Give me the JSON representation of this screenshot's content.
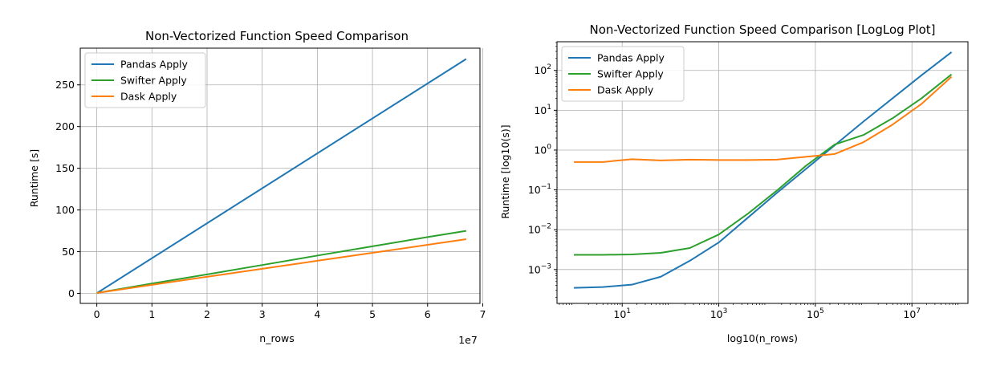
{
  "chart_data": [
    {
      "type": "line",
      "title": "Non-Vectorized Function Speed Comparison",
      "xlabel": "n_rows",
      "ylabel": "Runtime [s]",
      "x_offset_text": "1e7",
      "xlim": [
        -0.3,
        6.95
      ],
      "ylim": [
        -12,
        294
      ],
      "x_ticks": [
        0,
        1,
        2,
        3,
        4,
        5,
        6,
        7
      ],
      "y_ticks": [
        0,
        50,
        100,
        150,
        200,
        250
      ],
      "grid": true,
      "legend_position": "top-left",
      "series": [
        {
          "name": "Pandas Apply",
          "color": "#1f77b4",
          "x": [
            0,
            6.7
          ],
          "y": [
            0.3,
            281
          ]
        },
        {
          "name": "Swifter Apply",
          "color": "#2ca02c",
          "x": [
            0,
            1,
            2,
            3,
            4,
            5,
            6,
            6.7
          ],
          "y": [
            0.5,
            11.8,
            22.8,
            34,
            45.3,
            56.4,
            67.5,
            75
          ]
        },
        {
          "name": "Dask Apply",
          "color": "#ff7f0e",
          "x": [
            0,
            1,
            2,
            3,
            4,
            5,
            6,
            6.7
          ],
          "y": [
            0.5,
            10.3,
            19.9,
            29.5,
            39.1,
            48.6,
            58.2,
            65
          ]
        }
      ]
    },
    {
      "type": "line",
      "title": "Non-Vectorized Function Speed Comparison [LogLog Plot]",
      "xlabel": "log10(n_rows)",
      "ylabel": "Runtime [log10(s)]",
      "x_scale": "log",
      "y_scale": "log",
      "xlim_log10": [
        -0.35,
        8.16
      ],
      "ylim_log10": [
        -3.85,
        2.72
      ],
      "x_ticks": [
        "10^1",
        "10^3",
        "10^5",
        "10^7"
      ],
      "y_ticks": [
        "10^-3",
        "10^-2",
        "10^-1",
        "10^0",
        "10^1",
        "10^2"
      ],
      "grid": true,
      "legend_position": "top-left",
      "series": [
        {
          "name": "Pandas Apply",
          "color": "#1f77b4",
          "x_log10": [
            0,
            0.6,
            1.2,
            1.8,
            2.4,
            3.0,
            3.6,
            4.2,
            4.8,
            5.4,
            6.0,
            6.6,
            7.2,
            7.82
          ],
          "y_log10": [
            -3.46,
            -3.44,
            -3.38,
            -3.18,
            -2.78,
            -2.32,
            -1.7,
            -1.08,
            -0.48,
            0.12,
            0.72,
            1.3,
            1.88,
            2.46
          ]
        },
        {
          "name": "Swifter Apply",
          "color": "#2ca02c",
          "x_log10": [
            0,
            0.6,
            1.2,
            1.8,
            2.4,
            3.0,
            3.6,
            4.2,
            4.8,
            5.4,
            6.0,
            6.6,
            7.2,
            7.82
          ],
          "y_log10": [
            -2.63,
            -2.63,
            -2.62,
            -2.58,
            -2.46,
            -2.12,
            -1.6,
            -1.02,
            -0.4,
            0.14,
            0.38,
            0.8,
            1.3,
            1.9
          ]
        },
        {
          "name": "Dask Apply",
          "color": "#ff7f0e",
          "x_log10": [
            0,
            0.6,
            1.2,
            1.8,
            2.4,
            3.0,
            3.6,
            4.2,
            4.8,
            5.4,
            6.0,
            6.6,
            7.2,
            7.82
          ],
          "y_log10": [
            -0.3,
            -0.3,
            -0.23,
            -0.26,
            -0.24,
            -0.25,
            -0.25,
            -0.24,
            -0.17,
            -0.1,
            0.2,
            0.64,
            1.16,
            1.84
          ]
        }
      ]
    }
  ]
}
